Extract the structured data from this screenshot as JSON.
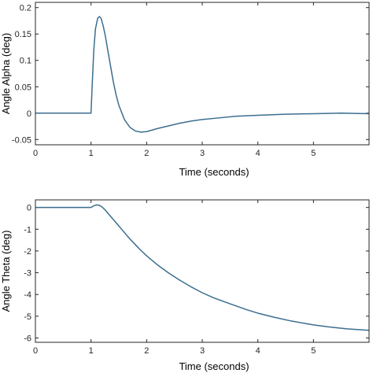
{
  "colors": {
    "series": "#3b6e8f",
    "axis": "#262626"
  },
  "chart_data": [
    {
      "type": "line",
      "xlabel": "Time (seconds)",
      "ylabel": "Angle Alpha (deg)",
      "xlim": [
        0,
        6
      ],
      "ylim": [
        -0.06,
        0.21
      ],
      "xticks": [
        0,
        1,
        2,
        3,
        4,
        5
      ],
      "yticks": [
        -0.05,
        0,
        0.05,
        0.1,
        0.15,
        0.2
      ],
      "ytick_labels": [
        "-0.05",
        "0",
        "0.05",
        "0.1",
        "0.15",
        "0.2"
      ],
      "grid": false,
      "series": [
        {
          "x": [
            0,
            0.5,
            1.0,
            1.02,
            1.05,
            1.08,
            1.12,
            1.15,
            1.18,
            1.22,
            1.26,
            1.3,
            1.35,
            1.4,
            1.45,
            1.5,
            1.6,
            1.7,
            1.8,
            1.9,
            2.0,
            2.1,
            2.2,
            2.4,
            2.6,
            2.8,
            3.0,
            3.3,
            3.6,
            4.0,
            4.5,
            5.0,
            5.5,
            6.0
          ],
          "y": [
            0,
            0,
            0,
            0.05,
            0.12,
            0.16,
            0.18,
            0.183,
            0.18,
            0.165,
            0.145,
            0.12,
            0.09,
            0.06,
            0.035,
            0.015,
            -0.012,
            -0.027,
            -0.034,
            -0.036,
            -0.035,
            -0.032,
            -0.029,
            -0.024,
            -0.019,
            -0.015,
            -0.012,
            -0.009,
            -0.006,
            -0.004,
            -0.002,
            -0.001,
            0,
            -0.001
          ]
        }
      ]
    },
    {
      "type": "line",
      "xlabel": "Time (seconds)",
      "ylabel": "Angle Theta (deg)",
      "xlim": [
        0,
        6
      ],
      "ylim": [
        -6.2,
        0.35
      ],
      "xticks": [
        0,
        1,
        2,
        3,
        4,
        5
      ],
      "yticks": [
        0,
        -1,
        -2,
        -3,
        -4,
        -5,
        -6
      ],
      "ytick_labels": [
        "0",
        "-1",
        "-2",
        "-3",
        "-4",
        "-5",
        "-6"
      ],
      "grid": false,
      "series": [
        {
          "x": [
            0,
            0.5,
            1.0,
            1.05,
            1.1,
            1.15,
            1.2,
            1.25,
            1.3,
            1.4,
            1.5,
            1.6,
            1.7,
            1.8,
            1.9,
            2.0,
            2.2,
            2.4,
            2.6,
            2.8,
            3.0,
            3.2,
            3.5,
            3.8,
            4.0,
            4.3,
            4.6,
            5.0,
            5.3,
            5.6,
            6.0
          ],
          "y": [
            0,
            0,
            0,
            0.08,
            0.12,
            0.1,
            0.02,
            -0.1,
            -0.25,
            -0.55,
            -0.85,
            -1.15,
            -1.45,
            -1.72,
            -1.98,
            -2.22,
            -2.65,
            -3.02,
            -3.35,
            -3.65,
            -3.92,
            -4.15,
            -4.43,
            -4.7,
            -4.86,
            -5.05,
            -5.22,
            -5.4,
            -5.5,
            -5.58,
            -5.65
          ]
        }
      ]
    }
  ]
}
